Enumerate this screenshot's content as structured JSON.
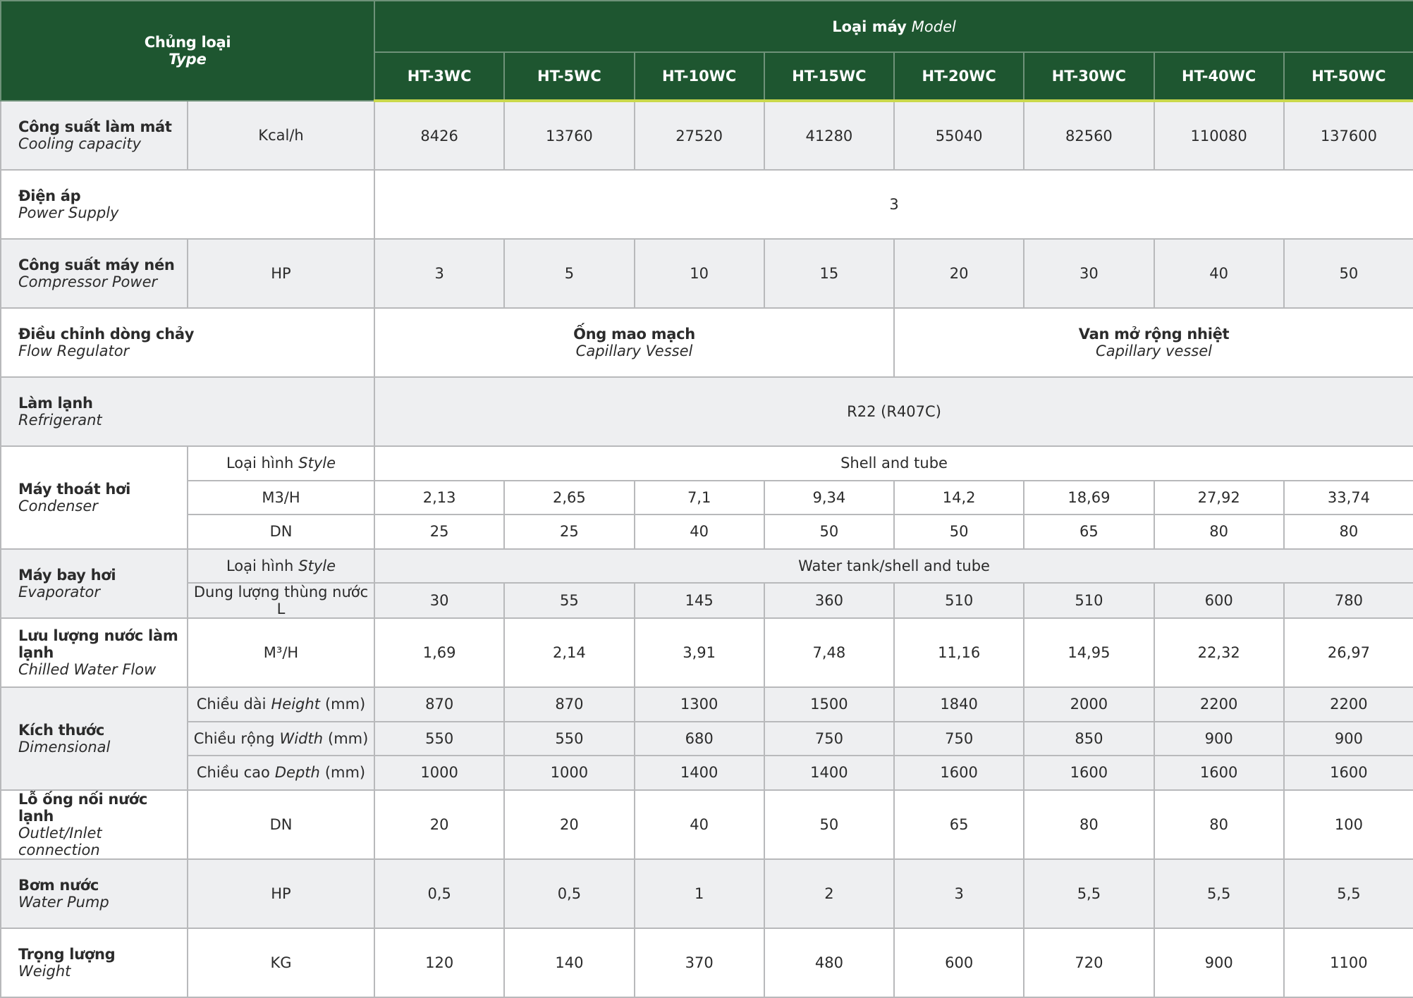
{
  "header": {
    "type_vi": "Chủng loại",
    "type_en": "Type",
    "model_vi": "Loại máy",
    "model_en": "Model",
    "models": [
      "HT-3WC",
      "HT-5WC",
      "HT-10WC",
      "HT-15WC",
      "HT-20WC",
      "HT-30WC",
      "HT-40WC",
      "HT-50WC"
    ]
  },
  "rows": [
    {
      "name_vi": "Công suất làm mát",
      "name_en": "Cooling capacity",
      "unit": "Kcal/h",
      "values": [
        8426,
        13760,
        27520,
        41280,
        55040,
        82560,
        110080,
        137600
      ]
    },
    {
      "name_vi": "Điện áp",
      "name_en": "Power Supply",
      "span": 3
    },
    {
      "name_vi": "Công suất máy nén",
      "name_en": "Compressor Power",
      "unit": "HP",
      "values": [
        3,
        5,
        10,
        15,
        20,
        30,
        40,
        50
      ]
    },
    {
      "name_vi": "Điều chỉnh dòng chảy",
      "name_en": "Flow Regulator",
      "spans": [
        {
          "vi": "Ống mao mạch",
          "en": "Capillary Vessel"
        },
        {
          "vi": "Van mở rộng nhiệt",
          "en": "Capillary vessel"
        }
      ]
    },
    {
      "name_vi": "Làm lạnh",
      "name_en": "Refrigerant",
      "span": "R22 (R407C)"
    },
    {
      "name_vi": "Máy thoát hơi",
      "name_en": "Condenser",
      "sub": [
        {
          "unit": "Loại hình",
          "unit_em": "Style",
          "span": "Shell and tube"
        },
        {
          "unit": "M3/H",
          "values": [
            "2,13",
            "2,65",
            "7,1",
            "9,34",
            "14,2",
            "18,69",
            "27,92",
            "33,74"
          ]
        },
        {
          "unit": "DN",
          "values": [
            25,
            25,
            40,
            50,
            50,
            65,
            80,
            80
          ]
        }
      ]
    },
    {
      "name_vi": "Máy bay hơi",
      "name_en": "Evaporator",
      "sub": [
        {
          "unit": "Loại hình",
          "unit_em": "Style",
          "span": "Water tank/shell and tube"
        },
        {
          "unit": "Dung lượng thùng nước L",
          "values": [
            30,
            55,
            145,
            360,
            510,
            510,
            600,
            780
          ]
        }
      ]
    },
    {
      "name_vi": "Lưu lượng nước làm lạnh",
      "name_en": "Chilled Water Flow",
      "unit": "M³/H",
      "values": [
        "1,69",
        "2,14",
        "3,91",
        "7,48",
        "11,16",
        "14,95",
        "22,32",
        "26,97"
      ]
    },
    {
      "name_vi": "Kích thước",
      "name_en": "Dimensional",
      "sub": [
        {
          "unit": "Chiều dài",
          "unit_em": "Height",
          "unit_suffix": "(mm)",
          "values": [
            870,
            870,
            1300,
            1500,
            1840,
            2000,
            2200,
            2200
          ]
        },
        {
          "unit": "Chiều rộng",
          "unit_em": "Width",
          "unit_suffix": "(mm)",
          "values": [
            550,
            550,
            680,
            750,
            750,
            850,
            900,
            900
          ]
        },
        {
          "unit": "Chiều cao",
          "unit_em": "Depth",
          "unit_suffix": "(mm)",
          "values": [
            1000,
            1000,
            1400,
            1400,
            1600,
            1600,
            1600,
            1600
          ]
        }
      ]
    },
    {
      "name_vi": "Lỗ ống nối nước lạnh",
      "name_en": "Outlet/Inlet connection",
      "unit": "DN",
      "values": [
        20,
        20,
        40,
        50,
        65,
        80,
        80,
        100
      ]
    },
    {
      "name_vi": "Bơm nước",
      "name_en": "Water Pump",
      "unit": "HP",
      "values": [
        "0,5",
        "0,5",
        1,
        2,
        3,
        "5,5",
        "5,5",
        "5,5"
      ]
    },
    {
      "name_vi": "Trọng lượng",
      "name_en": "Weight",
      "unit": "KG",
      "values": [
        120,
        140,
        370,
        480,
        600,
        720,
        900,
        1100
      ]
    }
  ]
}
